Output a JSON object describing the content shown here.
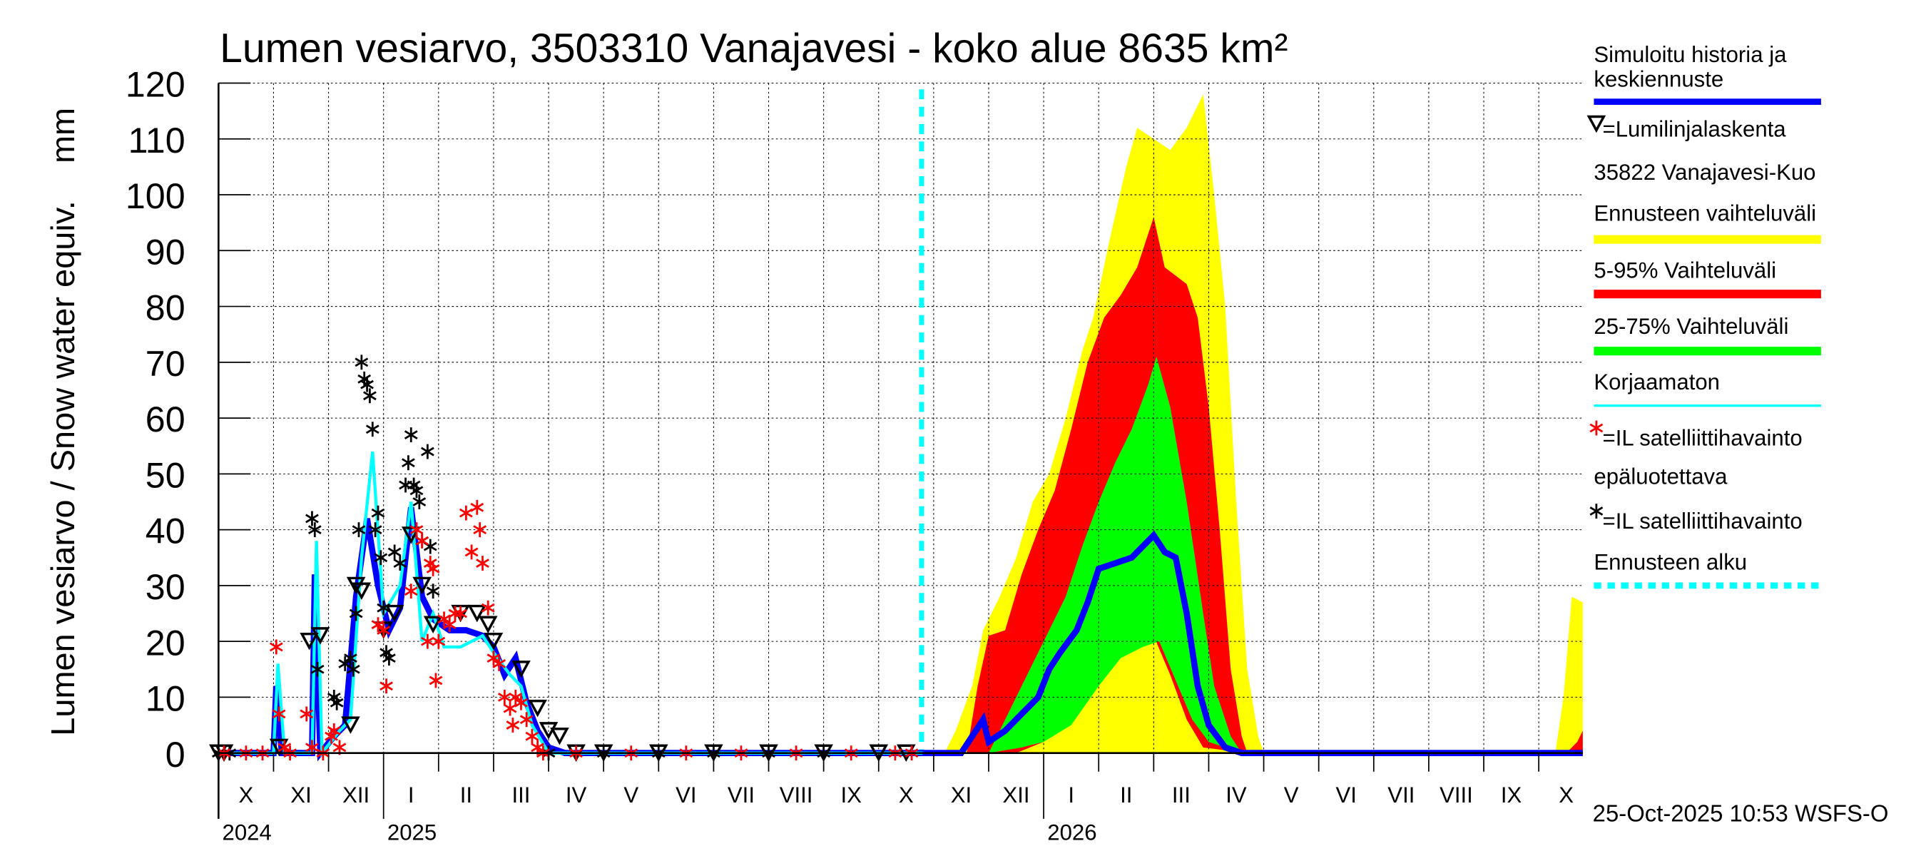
{
  "chart_data": {
    "type": "area",
    "title": "Lumen vesiarvo, 3503310 Vanajavesi - koko alue 8635 km²",
    "ylabel": "Lumen vesiarvo / Snow water equiv.    mm",
    "xlabel": "",
    "x_unit": "months since 1 Oct 2024",
    "ylim": [
      0,
      120
    ],
    "xlim": [
      0,
      24.8
    ],
    "grid": true,
    "yticks": [
      "0",
      "10",
      "20",
      "30",
      "40",
      "50",
      "60",
      "70",
      "80",
      "90",
      "100",
      "110",
      "120"
    ],
    "months": [
      "X",
      "XI",
      "XII",
      "I",
      "II",
      "III",
      "IV",
      "V",
      "VI",
      "VII",
      "VIII",
      "IX",
      "X",
      "XI",
      "XII",
      "I",
      "II",
      "III",
      "IV",
      "V",
      "VI",
      "VII",
      "VIII",
      "IX",
      "X"
    ],
    "years": [
      {
        "label": "2024",
        "m": 0
      },
      {
        "label": "2025",
        "m": 3
      },
      {
        "label": "2026",
        "m": 15
      }
    ],
    "forecast_start": 12.78,
    "legend_position": "right",
    "legend": [
      {
        "label": "Simuloitu historia ja keskiennuste",
        "color": "#0000ff",
        "kind": "line"
      },
      {
        "label": "=Lumilinjalaskenta",
        "kind": "triangle"
      },
      {
        "label": "35822 Vanajavesi-Kuo",
        "kind": "text"
      },
      {
        "label": "Ennusteen vaihteluväli",
        "color": "#ffff00",
        "kind": "band"
      },
      {
        "label": "5-95% Vaihteluväli",
        "color": "#ff0000",
        "kind": "band"
      },
      {
        "label": "25-75% Vaihteluväli",
        "color": "#00ff00",
        "kind": "band"
      },
      {
        "label": "Korjaamaton",
        "color": "#00ffff",
        "kind": "thin"
      },
      {
        "label": "=IL satelliittihavainto",
        "color": "#ff0000",
        "kind": "star"
      },
      {
        "label": "epäluotettava",
        "kind": "text"
      },
      {
        "label": "=IL satelliittihavainto",
        "color": "#000000",
        "kind": "star"
      },
      {
        "label": "Ennusteen alku",
        "color": "#00ffff",
        "kind": "dash"
      }
    ],
    "bands": [
      {
        "name": "Ennusteen vaihteluväli",
        "color": "#ffff00",
        "upper": [
          [
            13.2,
            0
          ],
          [
            13.4,
            4
          ],
          [
            13.7,
            12
          ],
          [
            13.9,
            22
          ],
          [
            14.2,
            28
          ],
          [
            14.5,
            35
          ],
          [
            14.8,
            45
          ],
          [
            15.1,
            50
          ],
          [
            15.4,
            60
          ],
          [
            15.7,
            72
          ],
          [
            15.9,
            78
          ],
          [
            16.2,
            92
          ],
          [
            16.5,
            105
          ],
          [
            16.7,
            112
          ],
          [
            17.0,
            110
          ],
          [
            17.3,
            108
          ],
          [
            17.6,
            112
          ],
          [
            17.9,
            118
          ],
          [
            18.1,
            100
          ],
          [
            18.3,
            80
          ],
          [
            18.5,
            45
          ],
          [
            18.7,
            15
          ],
          [
            18.9,
            3
          ],
          [
            19.0,
            0
          ]
        ],
        "lower": [
          [
            13.2,
            0
          ],
          [
            19.0,
            0
          ]
        ]
      },
      {
        "name": "Ennusteen vaihteluväli (2026)",
        "color": "#ffff00",
        "upper": [
          [
            24.3,
            0
          ],
          [
            24.45,
            10
          ],
          [
            24.6,
            28
          ],
          [
            24.8,
            27
          ]
        ],
        "lower": [
          [
            24.3,
            0
          ],
          [
            24.8,
            0
          ]
        ]
      },
      {
        "name": "5-95%",
        "color": "#ff0000",
        "upper": [
          [
            13.6,
            0
          ],
          [
            13.8,
            12
          ],
          [
            14.0,
            21
          ],
          [
            14.3,
            22
          ],
          [
            14.6,
            32
          ],
          [
            14.9,
            40
          ],
          [
            15.2,
            47
          ],
          [
            15.5,
            58
          ],
          [
            15.8,
            70
          ],
          [
            16.1,
            78
          ],
          [
            16.4,
            82
          ],
          [
            16.7,
            87
          ],
          [
            17.0,
            96
          ],
          [
            17.2,
            87
          ],
          [
            17.6,
            84
          ],
          [
            17.8,
            78
          ],
          [
            18.0,
            62
          ],
          [
            18.2,
            40
          ],
          [
            18.4,
            15
          ],
          [
            18.6,
            3
          ],
          [
            18.7,
            0
          ]
        ],
        "lower": [
          [
            13.6,
            0
          ],
          [
            14.5,
            0
          ],
          [
            15.0,
            2
          ],
          [
            15.5,
            8
          ],
          [
            16.0,
            18
          ],
          [
            16.3,
            21
          ],
          [
            16.7,
            22
          ],
          [
            17.0,
            21
          ],
          [
            17.3,
            14
          ],
          [
            17.6,
            6
          ],
          [
            17.9,
            1
          ],
          [
            18.7,
            0
          ]
        ]
      },
      {
        "name": "5-95% (2026)",
        "color": "#ff0000",
        "upper": [
          [
            24.5,
            0
          ],
          [
            24.7,
            2
          ],
          [
            24.8,
            4
          ]
        ],
        "lower": [
          [
            24.5,
            0
          ],
          [
            24.8,
            0
          ]
        ]
      },
      {
        "name": "25-75%",
        "color": "#00ff00",
        "upper": [
          [
            14.0,
            0
          ],
          [
            14.2,
            4
          ],
          [
            14.5,
            10
          ],
          [
            14.8,
            16
          ],
          [
            15.1,
            22
          ],
          [
            15.4,
            28
          ],
          [
            15.7,
            37
          ],
          [
            16.0,
            45
          ],
          [
            16.3,
            52
          ],
          [
            16.6,
            58
          ],
          [
            16.9,
            66
          ],
          [
            17.05,
            71
          ],
          [
            17.3,
            62
          ],
          [
            17.6,
            45
          ],
          [
            17.9,
            25
          ],
          [
            18.1,
            12
          ],
          [
            18.4,
            3
          ],
          [
            18.6,
            0
          ]
        ],
        "lower": [
          [
            14.0,
            0
          ],
          [
            14.6,
            1
          ],
          [
            15.0,
            2
          ],
          [
            15.5,
            5
          ],
          [
            16.0,
            12
          ],
          [
            16.4,
            17
          ],
          [
            16.8,
            19
          ],
          [
            17.1,
            20
          ],
          [
            17.4,
            13
          ],
          [
            17.7,
            6
          ],
          [
            18.0,
            2
          ],
          [
            18.6,
            0
          ]
        ]
      }
    ],
    "series": [
      {
        "name": "Simuloitu historia ja keskiennuste",
        "color": "#0000ff",
        "values": [
          [
            0,
            0
          ],
          [
            1.0,
            0
          ],
          [
            1.05,
            12
          ],
          [
            1.15,
            0
          ],
          [
            1.7,
            0
          ],
          [
            1.75,
            32
          ],
          [
            1.85,
            0
          ],
          [
            2.1,
            3
          ],
          [
            2.3,
            5
          ],
          [
            2.5,
            28
          ],
          [
            2.7,
            42
          ],
          [
            2.9,
            30
          ],
          [
            3.1,
            22
          ],
          [
            3.3,
            26
          ],
          [
            3.5,
            44
          ],
          [
            3.7,
            28
          ],
          [
            3.9,
            24
          ],
          [
            4.2,
            22
          ],
          [
            4.5,
            22
          ],
          [
            4.8,
            21
          ],
          [
            5.0,
            19
          ],
          [
            5.2,
            14
          ],
          [
            5.4,
            17
          ],
          [
            5.6,
            9
          ],
          [
            5.8,
            4
          ],
          [
            6.0,
            1
          ],
          [
            6.3,
            0
          ],
          [
            13.5,
            0
          ],
          [
            13.7,
            3
          ],
          [
            13.9,
            6
          ],
          [
            14.0,
            2
          ],
          [
            14.3,
            4
          ],
          [
            14.6,
            7
          ],
          [
            14.9,
            10
          ],
          [
            15.1,
            15
          ],
          [
            15.3,
            18
          ],
          [
            15.6,
            22
          ],
          [
            15.8,
            27
          ],
          [
            16.0,
            33
          ],
          [
            16.3,
            34
          ],
          [
            16.6,
            35
          ],
          [
            16.8,
            37
          ],
          [
            17.0,
            39
          ],
          [
            17.2,
            36
          ],
          [
            17.4,
            35
          ],
          [
            17.6,
            25
          ],
          [
            17.8,
            12
          ],
          [
            18.0,
            5
          ],
          [
            18.3,
            1
          ],
          [
            18.6,
            0
          ],
          [
            24.8,
            0
          ]
        ]
      },
      {
        "name": "Korjaamaton",
        "color": "#00ffff",
        "values": [
          [
            0,
            0
          ],
          [
            1.0,
            0
          ],
          [
            1.08,
            16
          ],
          [
            1.2,
            0
          ],
          [
            1.7,
            0
          ],
          [
            1.78,
            38
          ],
          [
            1.88,
            0
          ],
          [
            2.2,
            4
          ],
          [
            2.4,
            6
          ],
          [
            2.6,
            35
          ],
          [
            2.8,
            54
          ],
          [
            3.0,
            25
          ],
          [
            3.3,
            30
          ],
          [
            3.5,
            45
          ],
          [
            3.7,
            20
          ],
          [
            3.9,
            25
          ],
          [
            4.1,
            19
          ],
          [
            4.4,
            19
          ],
          [
            4.8,
            21
          ],
          [
            5.0,
            18
          ],
          [
            5.3,
            14
          ],
          [
            5.5,
            12
          ],
          [
            5.7,
            5
          ],
          [
            6.0,
            0
          ],
          [
            12.8,
            0
          ]
        ]
      }
    ],
    "triangles": [
      [
        0,
        0
      ],
      [
        0.1,
        0
      ],
      [
        1.1,
        1
      ],
      [
        1.65,
        20
      ],
      [
        1.85,
        21
      ],
      [
        2.4,
        5
      ],
      [
        2.5,
        30
      ],
      [
        2.6,
        29
      ],
      [
        3.0,
        22
      ],
      [
        3.2,
        25
      ],
      [
        3.5,
        39
      ],
      [
        3.7,
        30
      ],
      [
        3.9,
        23
      ],
      [
        4.4,
        25
      ],
      [
        4.7,
        25
      ],
      [
        4.9,
        23
      ],
      [
        5.0,
        20
      ],
      [
        5.5,
        15
      ],
      [
        5.8,
        8
      ],
      [
        6.0,
        4
      ],
      [
        6.2,
        3
      ],
      [
        6.5,
        0
      ],
      [
        7,
        0
      ],
      [
        8,
        0
      ],
      [
        9,
        0
      ],
      [
        10,
        0
      ],
      [
        11,
        0
      ],
      [
        12,
        0
      ],
      [
        12.5,
        0
      ]
    ],
    "red_stars": [
      [
        0.1,
        0
      ],
      [
        0.5,
        0
      ],
      [
        0.8,
        0
      ],
      [
        1.05,
        19
      ],
      [
        1.1,
        7
      ],
      [
        1.2,
        1
      ],
      [
        1.3,
        0
      ],
      [
        1.6,
        7
      ],
      [
        1.7,
        1
      ],
      [
        1.9,
        0
      ],
      [
        2.05,
        3
      ],
      [
        2.1,
        4
      ],
      [
        2.2,
        1
      ],
      [
        2.9,
        23
      ],
      [
        3.0,
        22
      ],
      [
        3.05,
        12
      ],
      [
        3.5,
        29
      ],
      [
        3.6,
        40
      ],
      [
        3.7,
        38
      ],
      [
        3.8,
        20
      ],
      [
        3.85,
        34
      ],
      [
        3.9,
        33
      ],
      [
        3.95,
        13
      ],
      [
        4.0,
        20
      ],
      [
        4.1,
        24
      ],
      [
        4.2,
        23
      ],
      [
        4.3,
        25
      ],
      [
        4.4,
        25
      ],
      [
        4.5,
        43
      ],
      [
        4.6,
        36
      ],
      [
        4.7,
        44
      ],
      [
        4.75,
        40
      ],
      [
        4.8,
        34
      ],
      [
        4.9,
        26
      ],
      [
        5.0,
        17
      ],
      [
        5.1,
        16
      ],
      [
        5.2,
        10
      ],
      [
        5.3,
        8
      ],
      [
        5.35,
        5
      ],
      [
        5.4,
        10
      ],
      [
        5.5,
        9
      ],
      [
        5.6,
        6
      ],
      [
        5.7,
        3
      ],
      [
        5.8,
        1
      ],
      [
        5.9,
        0
      ],
      [
        6.5,
        0
      ],
      [
        7.5,
        0
      ],
      [
        8.5,
        0
      ],
      [
        9.5,
        0
      ],
      [
        10.5,
        0
      ],
      [
        11.5,
        0
      ],
      [
        12.3,
        0
      ],
      [
        12.6,
        0
      ]
    ],
    "black_stars": [
      [
        0,
        0
      ],
      [
        0.2,
        0
      ],
      [
        1.7,
        42
      ],
      [
        1.75,
        40
      ],
      [
        1.8,
        15
      ],
      [
        2.1,
        10
      ],
      [
        2.15,
        9
      ],
      [
        2.3,
        16
      ],
      [
        2.4,
        17
      ],
      [
        2.45,
        15
      ],
      [
        2.5,
        25
      ],
      [
        2.55,
        40
      ],
      [
        2.6,
        70
      ],
      [
        2.65,
        67
      ],
      [
        2.7,
        66
      ],
      [
        2.75,
        64
      ],
      [
        2.8,
        58
      ],
      [
        2.85,
        40
      ],
      [
        2.9,
        43
      ],
      [
        2.95,
        35
      ],
      [
        3.0,
        26
      ],
      [
        3.05,
        18
      ],
      [
        3.1,
        17
      ],
      [
        3.2,
        36
      ],
      [
        3.3,
        34
      ],
      [
        3.4,
        48
      ],
      [
        3.45,
        52
      ],
      [
        3.5,
        57
      ],
      [
        3.55,
        48
      ],
      [
        3.6,
        47
      ],
      [
        3.65,
        45
      ],
      [
        3.7,
        38
      ],
      [
        3.8,
        54
      ],
      [
        3.85,
        37
      ],
      [
        3.9,
        29
      ],
      [
        6.0,
        0
      ],
      [
        7,
        0
      ],
      [
        8,
        0
      ],
      [
        9,
        0
      ],
      [
        10,
        0
      ],
      [
        11,
        0
      ]
    ]
  },
  "footer": {
    "timestamp": "25-Oct-2025 10:53 WSFS-O"
  }
}
